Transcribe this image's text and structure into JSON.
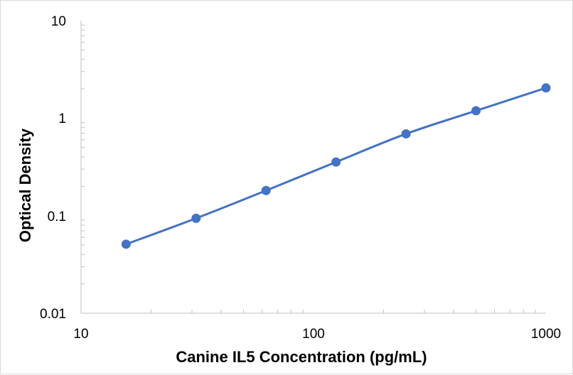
{
  "chart_data": {
    "type": "line",
    "title": "",
    "xlabel": "Canine IL5 Concentration (pg/mL)",
    "ylabel": "Optical Density",
    "x_scale": "log",
    "y_scale": "log",
    "xlim": [
      10,
      1000
    ],
    "ylim": [
      0.01,
      10
    ],
    "x_ticks": [
      "10",
      "100",
      "1000"
    ],
    "y_ticks": [
      "0.01",
      "0.1",
      "1",
      "10"
    ],
    "grid": false,
    "legend": "none",
    "series": [
      {
        "color": "#4472c4",
        "marker": "circle",
        "x": [
          15.625,
          31.25,
          62.5,
          125,
          250,
          500,
          1000
        ],
        "y": [
          0.051,
          0.094,
          0.181,
          0.355,
          0.69,
          1.19,
          2.04
        ]
      }
    ]
  }
}
